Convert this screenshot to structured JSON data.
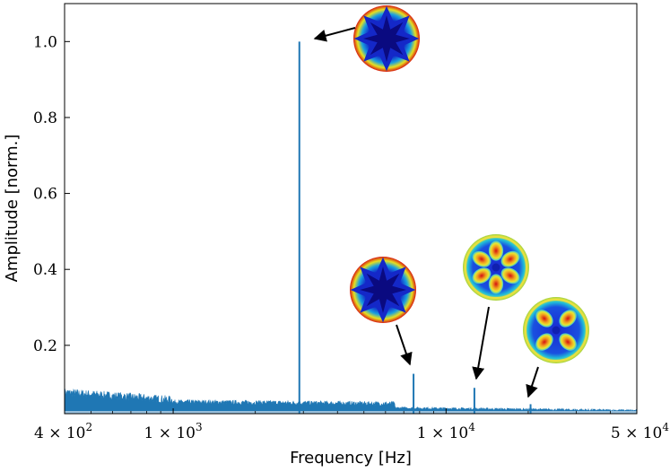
{
  "chart_data": {
    "type": "line",
    "xlabel": "Frequency [Hz]",
    "ylabel": "Amplitude [norm.]",
    "x_scale": "log",
    "xlim": [
      400,
      50000
    ],
    "ylim": [
      0.02,
      1.1
    ],
    "x_ticks": [
      {
        "value": 400,
        "mantissa": "4",
        "exp": "2"
      },
      {
        "value": 1000,
        "mantissa": "1",
        "exp": "3"
      },
      {
        "value": 10000,
        "mantissa": "1",
        "exp": "4"
      },
      {
        "value": 50000,
        "mantissa": "5",
        "exp": "4"
      }
    ],
    "y_ticks": [
      "0.2",
      "0.4",
      "0.6",
      "0.8",
      "1.0"
    ],
    "grid": false,
    "line_color": "#1f77b4",
    "peaks": [
      {
        "frequency": 2900,
        "amplitude": 1.0,
        "mode_image": "mode-8-lobe-outer"
      },
      {
        "frequency": 7600,
        "amplitude": 0.125,
        "mode_image": "mode-8-lobe-inner"
      },
      {
        "frequency": 12700,
        "amplitude": 0.088,
        "mode_image": "mode-6-lobe-ring"
      },
      {
        "frequency": 20400,
        "amplitude": 0.045,
        "mode_image": "mode-4-lobe-ring"
      }
    ],
    "noise_floor": [
      {
        "f_from": 400,
        "f_to": 1000,
        "level_from": 0.065,
        "level_to": 0.045
      },
      {
        "f_from": 1000,
        "f_to": 6500,
        "level_from": 0.045,
        "level_to": 0.04
      },
      {
        "f_from": 6500,
        "f_to": 50000,
        "level_from": 0.032,
        "level_to": 0.025
      }
    ]
  }
}
